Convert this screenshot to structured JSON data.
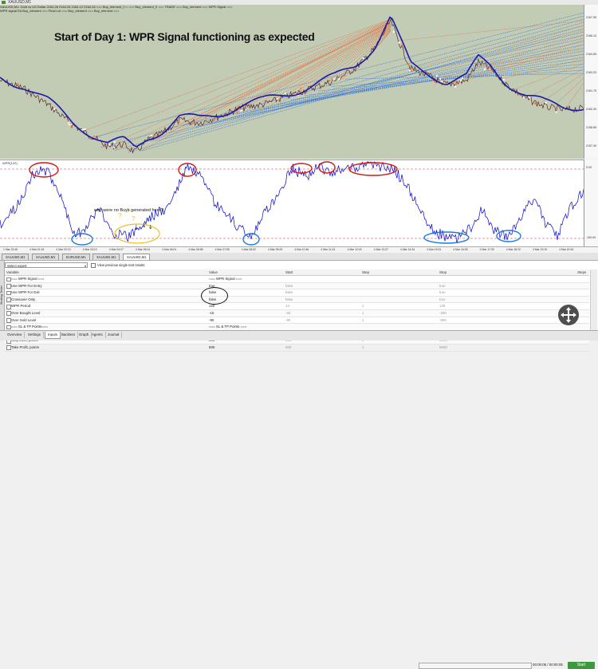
{
  "window": {
    "title": "XAUUSD,M1"
  },
  "chart": {
    "info_line1": "XAUUSD,M1: Gold vs US Dollar  2164.26 2164.26 2164.12 2164.16    ===  Buy_element_0  =  ===   Buy_element_0  ===   TRADE  ===  Buy_element  ===  WPR Signal  ===",
    "info_line2": "WPR signal EA  Buy_element  ===  Final Lot  ===  Buy_element  ===  Buy_element  ===",
    "annotation_title": "Start of Day 1: WPR Signal functioning as expected",
    "price_ticks": [
      "2167.55",
      "2166.10",
      "2164.65",
      "2163.20",
      "2161.75",
      "2160.30",
      "2158.85",
      "2157.40"
    ],
    "colors": {
      "background": "#c2cbb4",
      "ma_line": "#1a1aa8",
      "sell_lines": "#e36a3a",
      "buy_lines": "#2b6fd6",
      "price": "#5a2a2a"
    }
  },
  "indicator": {
    "label": "WPR(120)",
    "question_annotation": "why were no Buys generated here?",
    "right_ticks": [
      "0.00",
      "-100.00"
    ],
    "colors": {
      "line": "#1010d8",
      "level": "#d03030",
      "red_markup": "#d01818",
      "blue_markup": "#1a7ad8",
      "yellow_markup": "#f0c020"
    }
  },
  "time_axis": {
    "ticks": [
      "1 Mar 23:46",
      "4 Mar 01:16",
      "4 Mar 02:13",
      "4 Mar 03:10",
      "4 Mar 04:07",
      "4 Mar 05:04",
      "4 Mar 06:01",
      "4 Mar 06:58",
      "4 Mar 07:55",
      "4 Mar 08:52",
      "4 Mar 09:49",
      "4 Mar 10:46",
      "4 Mar 11:43",
      "4 Mar 12:40",
      "4 Mar 13:37",
      "4 Mar 14:34",
      "4 Mar 15:31",
      "4 Mar 16:28",
      "4 Mar 17:25",
      "4 Mar 18:22",
      "4 Mar 19:19",
      "4 Mar 20:16"
    ]
  },
  "symbol_tabs": [
    "XAUUSD,M1",
    "XAUUSD,M1",
    "EURUSD,M1",
    "XAUUSD,M1",
    "XAUUSD,M1"
  ],
  "tester": {
    "side_label": "Strategy Tester",
    "select_expert": "Select expert",
    "prev_results": "View previous single test results",
    "columns": {
      "variable": "Variable",
      "value": "Value",
      "start": "Start",
      "step": "Step",
      "stop": "Stop",
      "steps": "Steps"
    },
    "rows": [
      {
        "variable": "=== WPR Signal ===",
        "value": "=== WPR Signal ===",
        "start": "",
        "step": "",
        "stop": "",
        "greyed": false
      },
      {
        "variable": "Use WPR For Entry",
        "value": "true",
        "start": "false",
        "step": "",
        "stop": "true",
        "greyed": true
      },
      {
        "variable": "Use WPR For Exit",
        "value": "false",
        "start": "false",
        "step": "",
        "stop": "true",
        "greyed": true
      },
      {
        "variable": "Crossover Only",
        "value": "false",
        "start": "false",
        "step": "",
        "stop": "true",
        "greyed": true
      },
      {
        "variable": "WPR Period",
        "value": "120",
        "start": "14",
        "step": "1",
        "stop": "140",
        "greyed": true
      },
      {
        "variable": "Over Bought Level",
        "value": "-10",
        "start": "-20",
        "step": "1",
        "stop": "-200",
        "greyed": true
      },
      {
        "variable": "Over Sold Level",
        "value": "-90",
        "start": "-80",
        "step": "1",
        "stop": "-800",
        "greyed": true
      },
      {
        "variable": "=== SL & TP Points===",
        "value": "=== SL & TP Points ===",
        "start": "",
        "step": "",
        "stop": "",
        "greyed": false
      },
      {
        "variable": "Use SL & TP Points",
        "value": "true",
        "start": "false",
        "step": "",
        "stop": "true",
        "greyed": true
      },
      {
        "variable": "Stop Loss, points",
        "value": "500",
        "start": "500",
        "step": "1",
        "stop": "5000",
        "greyed": true
      },
      {
        "variable": "Take Profit, points",
        "value": "500",
        "start": "500",
        "step": "1",
        "stop": "5000",
        "greyed": true
      }
    ],
    "bottom_tabs": [
      "Overview",
      "Settings",
      "Inputs",
      "Backtest",
      "Graph",
      "Agents",
      "Journal"
    ],
    "active_tab": "Inputs",
    "timer": "00:00:05 / 00:00:05",
    "start_label": "Start"
  }
}
